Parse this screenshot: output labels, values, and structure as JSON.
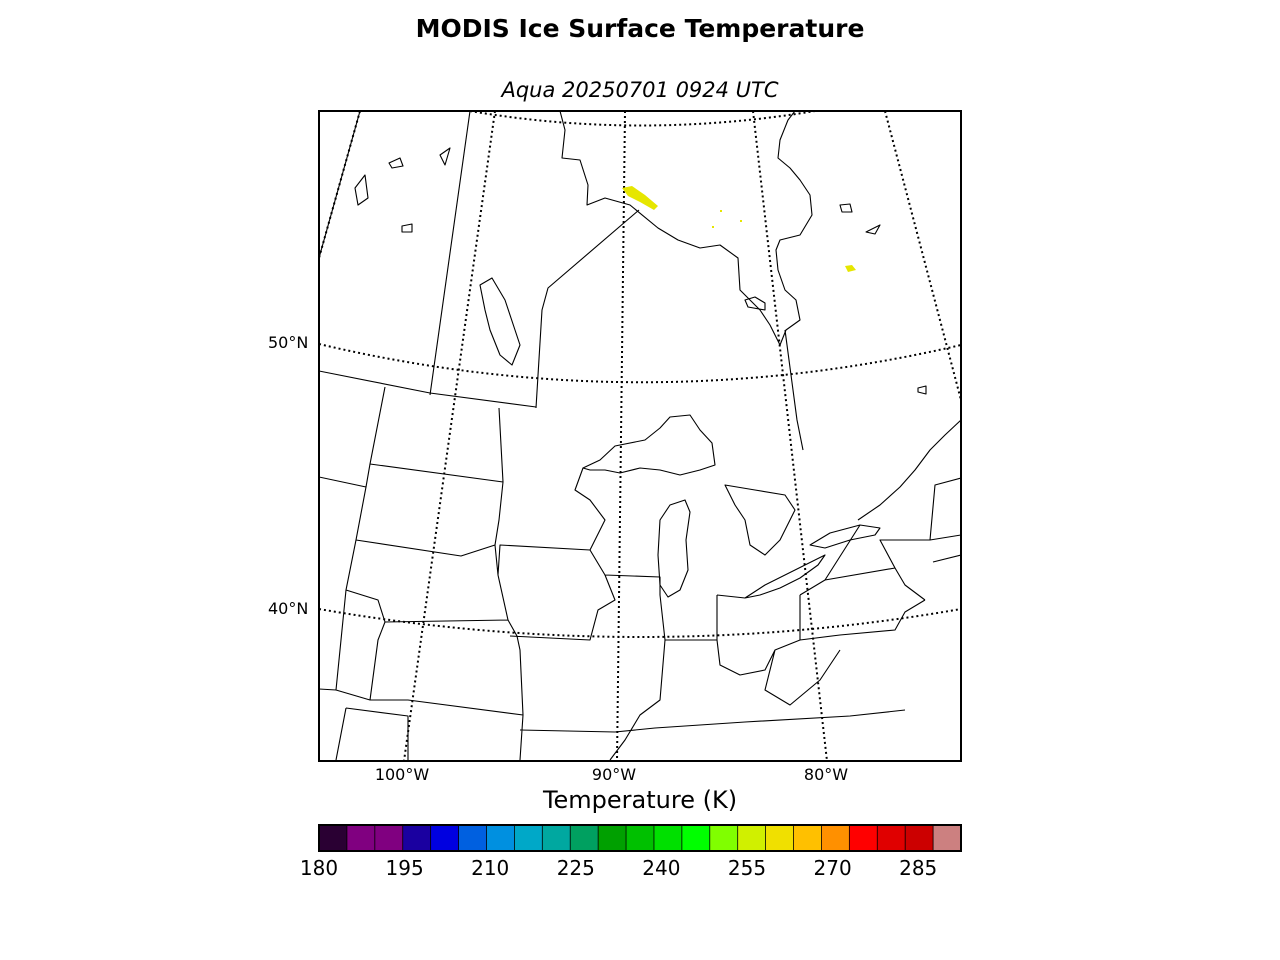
{
  "title": "MODIS Ice Surface Temperature",
  "subtitle": "Aqua 20250701 0924 UTC",
  "map": {
    "latitude_labels": [
      {
        "lat": 50,
        "text": "50°N"
      },
      {
        "lat": 40,
        "text": "40°N"
      }
    ],
    "longitude_labels": [
      {
        "lon": -100,
        "text": "100°W"
      },
      {
        "lon": -90,
        "text": "90°W"
      },
      {
        "lon": -80,
        "text": "80°W"
      }
    ],
    "graticule_style": "dotted",
    "ice_temperature_patches": [
      {
        "region": "Hudson Bay south coast",
        "color": "#e6e600"
      },
      {
        "region": "James Bay east",
        "color": "#e6e600"
      }
    ]
  },
  "colorbar": {
    "label": "Temperature (K)",
    "min": 180,
    "max": 292.5,
    "step": 5,
    "tick_values": [
      180,
      195,
      210,
      225,
      240,
      255,
      270,
      285
    ],
    "tick_labels": [
      "180",
      "195",
      "210",
      "225",
      "240",
      "255",
      "270",
      "285"
    ],
    "colors": [
      "#2a0033",
      "#800080",
      "#800080",
      "#1a00a0",
      "#0000e0",
      "#0060e0",
      "#0090e0",
      "#00a8c8",
      "#00a8a0",
      "#00a060",
      "#00a000",
      "#00c000",
      "#00e000",
      "#00ff00",
      "#80ff00",
      "#d0f000",
      "#f0e000",
      "#ffc000",
      "#ff9000",
      "#ff0000",
      "#e00000",
      "#cc0000",
      "#cc8080"
    ]
  }
}
